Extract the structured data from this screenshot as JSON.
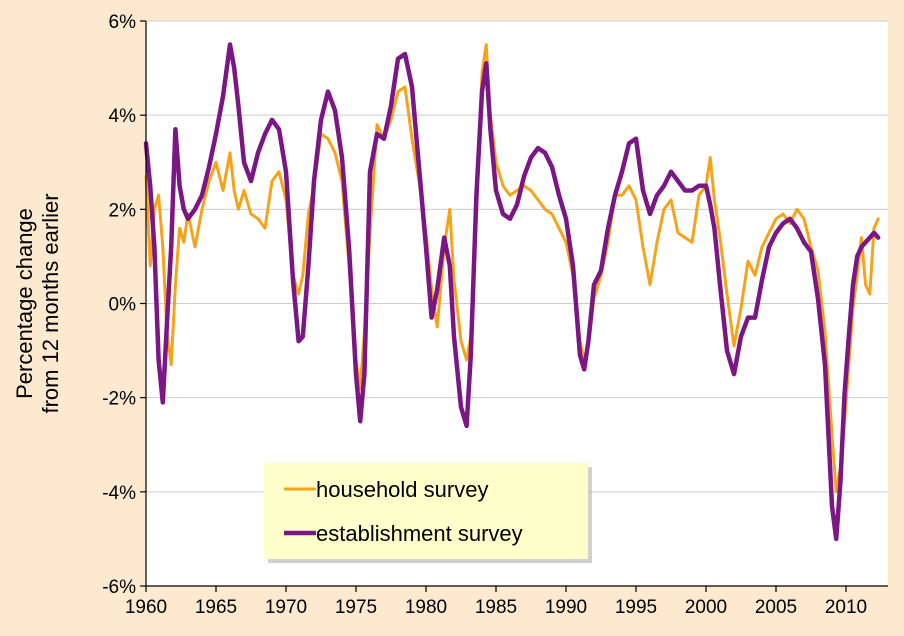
{
  "chart_data": {
    "type": "line",
    "ylabel": [
      "Percentage change",
      "from 12 months earlier"
    ],
    "xlim": [
      1960,
      2013
    ],
    "ylim": [
      -6,
      6
    ],
    "x_ticks": [
      1960,
      1965,
      1970,
      1975,
      1980,
      1985,
      1990,
      1995,
      2000,
      2005,
      2010
    ],
    "x_tick_labels": [
      "1960",
      "1965",
      "1970",
      "1975",
      "1980",
      "1985",
      "1990",
      "1995",
      "2000",
      "2005",
      "2010"
    ],
    "y_ticks": [
      6,
      4,
      2,
      0,
      -2,
      -4,
      -6
    ],
    "y_tick_labels": [
      "6%",
      "4%",
      "2%",
      "0%",
      "-2%",
      "-4%",
      "-6%"
    ],
    "grid": "horizontal",
    "legend_position": "bottom-left",
    "colors": {
      "plot_background": "#ffffff",
      "page_background": "#fce9cf",
      "legend_background": "#ffffcc",
      "gridline": "#cccccc"
    },
    "series": [
      {
        "name": "household survey",
        "color": "#f5a31a",
        "x": [
          1960.0,
          1960.3,
          1960.6,
          1960.9,
          1961.2,
          1961.5,
          1961.8,
          1962.1,
          1962.4,
          1962.7,
          1963.0,
          1963.5,
          1964.0,
          1964.5,
          1965.0,
          1965.5,
          1966.0,
          1966.3,
          1966.6,
          1967.0,
          1967.5,
          1968.0,
          1968.5,
          1969.0,
          1969.5,
          1970.0,
          1970.5,
          1970.9,
          1971.2,
          1971.6,
          1972.0,
          1972.5,
          1973.0,
          1973.5,
          1974.0,
          1974.5,
          1975.0,
          1975.3,
          1975.6,
          1976.0,
          1976.5,
          1977.0,
          1977.5,
          1978.0,
          1978.5,
          1979.0,
          1979.5,
          1980.0,
          1980.4,
          1980.8,
          1981.3,
          1981.7,
          1982.0,
          1982.5,
          1982.9,
          1983.2,
          1983.6,
          1984.0,
          1984.3,
          1984.6,
          1985.0,
          1985.5,
          1986.0,
          1986.5,
          1987.0,
          1987.5,
          1988.0,
          1988.5,
          1989.0,
          1989.5,
          1990.0,
          1990.5,
          1991.0,
          1991.3,
          1991.6,
          1992.0,
          1992.5,
          1993.0,
          1993.5,
          1994.0,
          1994.5,
          1995.0,
          1995.5,
          1996.0,
          1996.5,
          1997.0,
          1997.5,
          1998.0,
          1998.5,
          1999.0,
          1999.5,
          2000.0,
          2000.3,
          2000.6,
          2001.0,
          2001.5,
          2002.0,
          2002.5,
          2003.0,
          2003.5,
          2004.0,
          2004.5,
          2005.0,
          2005.5,
          2006.0,
          2006.5,
          2007.0,
          2007.5,
          2008.0,
          2008.5,
          2009.0,
          2009.3,
          2009.6,
          2009.9,
          2010.2,
          2010.5,
          2010.8,
          2011.1,
          2011.4,
          2011.7,
          2012.0,
          2012.3
        ],
        "y": [
          2.7,
          0.8,
          2.0,
          2.3,
          1.2,
          -0.6,
          -1.3,
          0.4,
          1.6,
          1.3,
          1.9,
          1.2,
          2.0,
          2.6,
          3.0,
          2.4,
          3.2,
          2.4,
          2.0,
          2.4,
          1.9,
          1.8,
          1.6,
          2.6,
          2.8,
          2.2,
          0.6,
          0.2,
          0.6,
          1.9,
          2.5,
          3.6,
          3.5,
          3.2,
          2.6,
          0.8,
          -1.2,
          -1.8,
          -0.6,
          1.5,
          3.8,
          3.5,
          3.9,
          4.5,
          4.6,
          3.5,
          2.6,
          1.5,
          0.3,
          -0.5,
          1.2,
          2.0,
          0.5,
          -0.8,
          -1.2,
          -0.7,
          1.8,
          4.9,
          5.5,
          4.0,
          3.0,
          2.5,
          2.3,
          2.4,
          2.5,
          2.4,
          2.2,
          2.0,
          1.9,
          1.6,
          1.3,
          0.6,
          -0.8,
          -1.2,
          -0.9,
          0.1,
          0.6,
          1.3,
          2.3,
          2.3,
          2.5,
          2.2,
          1.2,
          0.4,
          1.3,
          2.0,
          2.2,
          1.5,
          1.4,
          1.3,
          2.3,
          2.5,
          3.1,
          2.2,
          1.4,
          0.2,
          -0.9,
          -0.1,
          0.9,
          0.6,
          1.2,
          1.5,
          1.8,
          1.9,
          1.7,
          2.0,
          1.8,
          1.2,
          0.7,
          -0.6,
          -2.8,
          -4.0,
          -3.5,
          -2.5,
          -1.3,
          -0.1,
          0.6,
          1.4,
          0.4,
          0.2,
          1.6,
          1.8
        ]
      },
      {
        "name": "establishment survey",
        "color": "#7b1685",
        "x": [
          1960.0,
          1960.3,
          1960.6,
          1960.9,
          1961.2,
          1961.5,
          1961.8,
          1962.1,
          1962.4,
          1962.7,
          1963.0,
          1963.5,
          1964.0,
          1964.5,
          1965.0,
          1965.5,
          1966.0,
          1966.3,
          1966.6,
          1967.0,
          1967.5,
          1968.0,
          1968.5,
          1969.0,
          1969.5,
          1970.0,
          1970.5,
          1970.9,
          1971.2,
          1971.6,
          1972.0,
          1972.5,
          1973.0,
          1973.5,
          1974.0,
          1974.5,
          1975.0,
          1975.3,
          1975.6,
          1976.0,
          1976.5,
          1977.0,
          1977.5,
          1978.0,
          1978.5,
          1979.0,
          1979.5,
          1980.0,
          1980.4,
          1980.8,
          1981.3,
          1981.7,
          1982.0,
          1982.5,
          1982.9,
          1983.2,
          1983.6,
          1984.0,
          1984.3,
          1984.6,
          1985.0,
          1985.5,
          1986.0,
          1986.5,
          1987.0,
          1987.5,
          1988.0,
          1988.5,
          1989.0,
          1989.5,
          1990.0,
          1990.5,
          1991.0,
          1991.3,
          1991.6,
          1992.0,
          1992.5,
          1993.0,
          1993.5,
          1994.0,
          1994.5,
          1995.0,
          1995.5,
          1996.0,
          1996.5,
          1997.0,
          1997.5,
          1998.0,
          1998.5,
          1999.0,
          1999.5,
          2000.0,
          2000.3,
          2000.6,
          2001.0,
          2001.5,
          2002.0,
          2002.5,
          2003.0,
          2003.5,
          2004.0,
          2004.5,
          2005.0,
          2005.5,
          2006.0,
          2006.5,
          2007.0,
          2007.5,
          2008.0,
          2008.5,
          2009.0,
          2009.3,
          2009.6,
          2009.9,
          2010.2,
          2010.5,
          2010.8,
          2011.1,
          2011.4,
          2011.7,
          2012.0,
          2012.3
        ],
        "y": [
          3.4,
          2.5,
          1.2,
          -1.2,
          -2.1,
          -0.4,
          1.2,
          3.7,
          2.5,
          2.0,
          1.8,
          2.0,
          2.3,
          2.9,
          3.6,
          4.4,
          5.5,
          5.0,
          4.2,
          3.0,
          2.6,
          3.2,
          3.6,
          3.9,
          3.7,
          2.8,
          0.5,
          -0.8,
          -0.7,
          0.8,
          2.6,
          3.9,
          4.5,
          4.1,
          3.1,
          1.2,
          -1.5,
          -2.5,
          -1.5,
          2.8,
          3.6,
          3.5,
          4.2,
          5.2,
          5.3,
          4.6,
          2.9,
          1.2,
          -0.3,
          0.3,
          1.4,
          0.8,
          -0.7,
          -2.2,
          -2.6,
          -1.1,
          2.3,
          4.5,
          5.1,
          3.7,
          2.4,
          1.9,
          1.8,
          2.1,
          2.7,
          3.1,
          3.3,
          3.2,
          2.9,
          2.3,
          1.8,
          0.8,
          -1.1,
          -1.4,
          -0.8,
          0.4,
          0.7,
          1.6,
          2.3,
          2.8,
          3.4,
          3.5,
          2.4,
          1.9,
          2.3,
          2.5,
          2.8,
          2.6,
          2.4,
          2.4,
          2.5,
          2.5,
          2.1,
          1.6,
          0.4,
          -1.0,
          -1.5,
          -0.7,
          -0.3,
          -0.3,
          0.5,
          1.2,
          1.5,
          1.7,
          1.8,
          1.6,
          1.3,
          1.1,
          0.1,
          -1.3,
          -4.3,
          -5.0,
          -3.8,
          -1.9,
          -0.7,
          0.4,
          1.0,
          1.2,
          1.3,
          1.4,
          1.5,
          1.4
        ]
      }
    ]
  }
}
